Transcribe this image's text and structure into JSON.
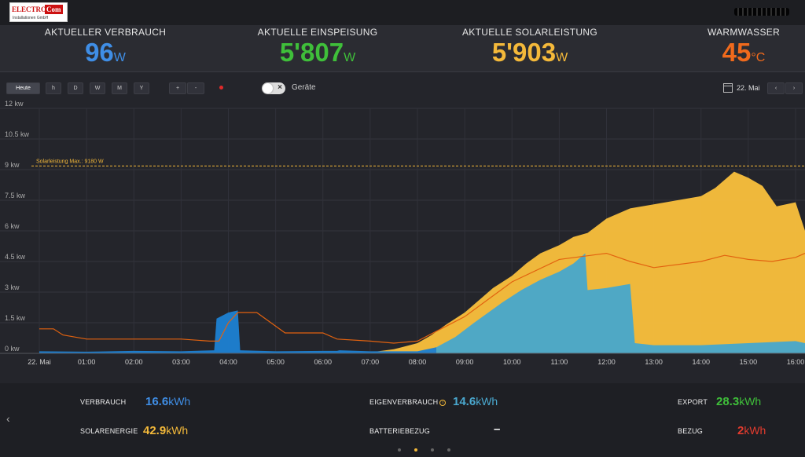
{
  "header": {
    "logo_text_1": "ELECTRO",
    "logo_text_2": "Com",
    "logo_sub": "Installationen GmbH",
    "colors": {
      "background": "#1d1e22"
    }
  },
  "stats": [
    {
      "label": "AKTUELLER VERBRAUCH",
      "value": "96",
      "unit": "W",
      "color": "#3f8ee6"
    },
    {
      "label": "AKTUELLE EINSPEISUNG",
      "value": "5'807",
      "unit": "W",
      "color": "#3fbf3a"
    },
    {
      "label": "AKTUELLE SOLARLEISTUNG",
      "value": "5'903",
      "unit": "W",
      "color": "#f4b93a"
    },
    {
      "label": "WARMWASSER",
      "value": "45",
      "unit": "°C",
      "color": "#f06a1c"
    }
  ],
  "toolbar": {
    "today": "Heute",
    "h": "h",
    "d": "D",
    "w": "W",
    "m": "M",
    "y": "Y",
    "plus": "+",
    "minus": "-",
    "geraete": "Geräte",
    "date": "22. Mai",
    "prev": "‹",
    "next": "›"
  },
  "chart_data": {
    "type": "area",
    "ylabel_unit": "kw",
    "ylim": [
      0,
      12
    ],
    "y_ticks": [
      "0 kw",
      "1.5 kw",
      "3 kw",
      "4.5 kw",
      "6 kw",
      "7.5 kw",
      "9 kw",
      "10.5 kw",
      "12 kw"
    ],
    "x_ticks": [
      "22. Mai",
      "01:00",
      "02:00",
      "03:00",
      "04:00",
      "05:00",
      "06:00",
      "07:00",
      "08:00",
      "09:00",
      "10:00",
      "11:00",
      "12:00",
      "13:00",
      "14:00",
      "15:00",
      "16:00"
    ],
    "max_line": {
      "label": "Solarleistung Max.: 9180 W",
      "value": 9.18,
      "color": "#f4b93a"
    },
    "series": [
      {
        "name": "Solarleistung",
        "color": "#f6bd3c",
        "x": [
          7.0,
          7.5,
          8.0,
          8.3,
          8.6,
          9.0,
          9.3,
          9.6,
          10.0,
          10.3,
          10.6,
          11.0,
          11.3,
          11.6,
          12.0,
          12.5,
          13.0,
          13.5,
          14.0,
          14.3,
          14.5,
          14.7,
          15.0,
          15.3,
          15.6,
          16.0,
          16.2
        ],
        "y": [
          0.05,
          0.2,
          0.5,
          0.9,
          1.4,
          2.0,
          2.6,
          3.2,
          3.8,
          4.4,
          4.9,
          5.3,
          5.7,
          5.9,
          6.6,
          7.1,
          7.3,
          7.5,
          7.7,
          8.1,
          8.5,
          8.9,
          8.6,
          8.2,
          7.2,
          7.4,
          6.0
        ]
      },
      {
        "name": "Eigenverbrauch",
        "color": "#49a7c9",
        "x": [
          8.4,
          8.8,
          9.2,
          9.5,
          9.8,
          10.2,
          10.6,
          11.0,
          11.3,
          11.55,
          11.6,
          12.0,
          12.5,
          12.6,
          13.0,
          14.0,
          15.0,
          16.0,
          16.2
        ],
        "y": [
          0.3,
          0.8,
          1.5,
          2.0,
          2.5,
          3.1,
          3.6,
          4.0,
          4.4,
          4.9,
          3.1,
          3.2,
          3.4,
          0.5,
          0.4,
          0.4,
          0.5,
          0.6,
          0.5
        ]
      },
      {
        "name": "Verbrauch",
        "color": "#1d7fd0",
        "x": [
          0.0,
          1.0,
          2.0,
          3.0,
          3.7,
          3.75,
          4.0,
          4.2,
          4.25,
          5.0,
          6.0,
          6.3,
          6.35,
          7.0,
          8.0,
          8.4
        ],
        "y": [
          0.1,
          0.08,
          0.12,
          0.1,
          0.15,
          1.7,
          2.0,
          2.1,
          0.15,
          0.1,
          0.12,
          0.12,
          0.15,
          0.1,
          0.1,
          0.3
        ]
      },
      {
        "name": "Warmwasser",
        "color": "#e2620f",
        "x": [
          0.0,
          0.3,
          0.5,
          1.0,
          3.0,
          3.6,
          3.8,
          4.0,
          4.2,
          4.6,
          4.9,
          5.2,
          6.0,
          6.3,
          7.0,
          7.5,
          8.0,
          9.0,
          10.0,
          11.0,
          12.0,
          12.5,
          13.0,
          14.0,
          14.5,
          15.0,
          15.5,
          16.0,
          16.2
        ],
        "y": [
          1.2,
          1.2,
          0.9,
          0.7,
          0.7,
          0.6,
          0.6,
          1.5,
          2.0,
          2.0,
          1.5,
          1.0,
          1.0,
          0.7,
          0.6,
          0.5,
          0.6,
          1.8,
          3.5,
          4.6,
          4.9,
          4.5,
          4.2,
          4.5,
          4.8,
          4.6,
          4.5,
          4.7,
          4.9
        ]
      }
    ]
  },
  "summary": {
    "verbrauch_label": "VERBRAUCH",
    "verbrauch_value": "16.6",
    "verbrauch_unit": "kWh",
    "solar_label": "SOLARENERGIE",
    "solar_value": "42.9",
    "solar_unit": "kWh",
    "eigen_label": "EIGENVERBRAUCH",
    "eigen_value": "14.6",
    "eigen_unit": "kWh",
    "batterie_label": "BATTERIEBEZUG",
    "batterie_value": "–",
    "export_label": "EXPORT",
    "export_value": "28.3",
    "export_unit": "kWh",
    "bezug_label": "BEZUG",
    "bezug_value": "2",
    "bezug_unit": "kWh",
    "colors": {
      "verbrauch": "#3f8ee6",
      "solar": "#f4b93a",
      "eigen": "#4aa8cf",
      "export": "#3fbf3a",
      "bezug": "#e23b2e"
    },
    "info_glyph": "i",
    "back_arrow": "‹"
  }
}
